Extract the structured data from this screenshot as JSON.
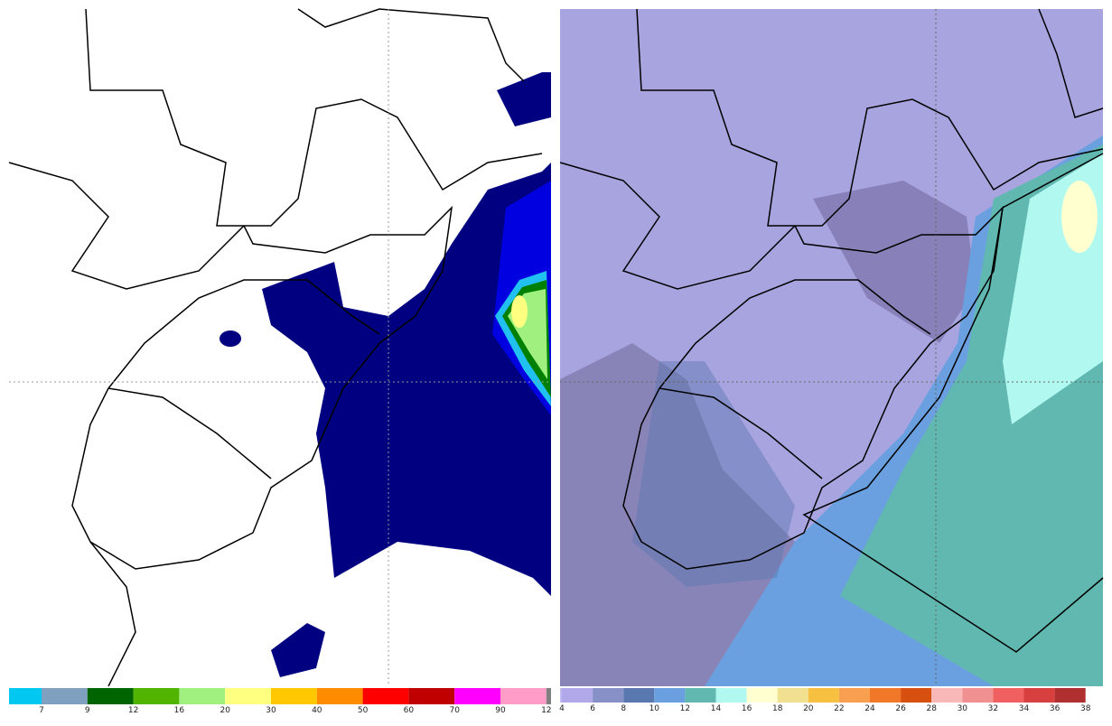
{
  "left_colorbar": {
    "labels": [
      7,
      9,
      12,
      16,
      20,
      30,
      40,
      50,
      60,
      70,
      90,
      12
    ],
    "colors": [
      "#00c8f0",
      "#80a0c0",
      "#006400",
      "#50b400",
      "#a0f080",
      "#ffff80",
      "#ffc800",
      "#ff8c00",
      "#ff0000",
      "#c00000",
      "#ff00ff",
      "#ff9cc8",
      "#808080"
    ]
  },
  "right_colorbar": {
    "labels": [
      4,
      6,
      8,
      10,
      12,
      14,
      16,
      18,
      20,
      22,
      24,
      26,
      28,
      30,
      32,
      34,
      36,
      38
    ],
    "colors": [
      "#c0b8f0",
      "#b0a8e8",
      "#8890c8",
      "#5a78b0",
      "#6aa0e0",
      "#60b8b0",
      "#b0f8f0",
      "#ffffd0",
      "#f0e090",
      "#f8c040",
      "#f8a050",
      "#f07828",
      "#d85010",
      "#f8b8b8",
      "#f09090",
      "#f06060",
      "#d84040",
      "#b03030"
    ]
  }
}
